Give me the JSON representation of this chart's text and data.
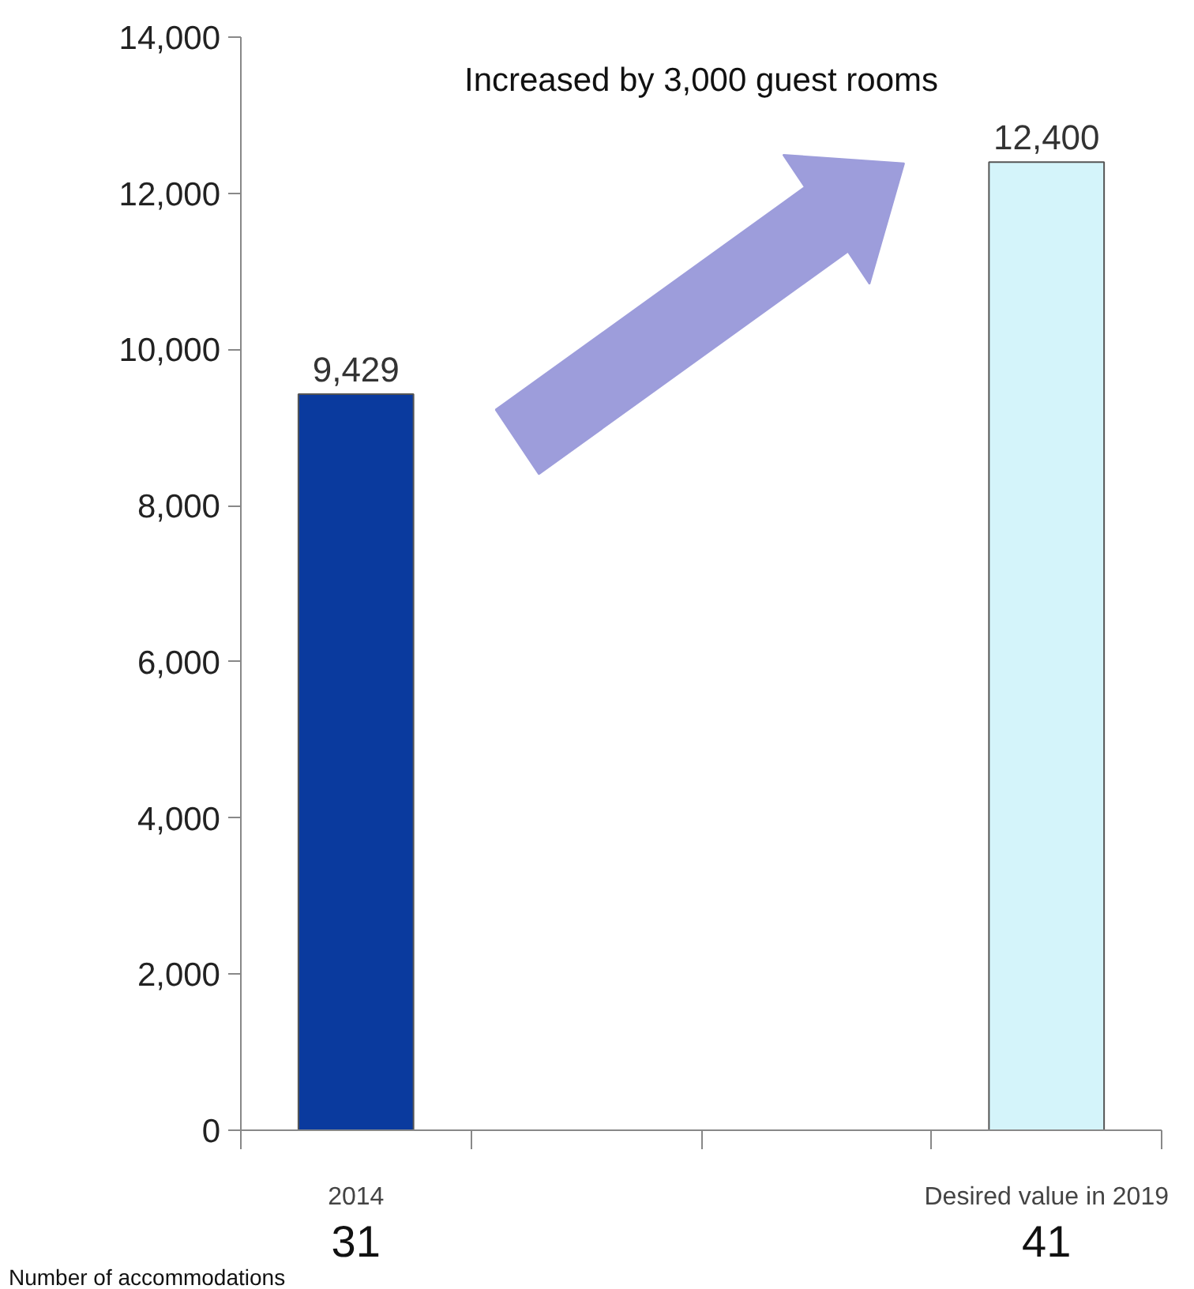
{
  "chart_data": {
    "type": "bar",
    "categories": [
      "2014",
      null,
      null,
      "Desired value in 2019"
    ],
    "values": [
      9429,
      null,
      null,
      12400
    ],
    "colors": [
      "#0a3a9e",
      null,
      null,
      "#d4f4fa"
    ],
    "ylim": [
      0,
      14000
    ],
    "yticks": [
      {
        "value": 0,
        "label": "0"
      },
      {
        "value": 2000,
        "label": "2,000"
      },
      {
        "value": 4000,
        "label": "4,000"
      },
      {
        "value": 6000,
        "label": "6,000"
      },
      {
        "value": 8000,
        "label": "8,000"
      },
      {
        "value": 10000,
        "label": "10,000"
      },
      {
        "value": 12000,
        "label": "12,000"
      },
      {
        "value": 14000,
        "label": "14,000"
      }
    ],
    "value_labels": [
      "9,429",
      null,
      null,
      "12,400"
    ],
    "grid": false,
    "annotations": [
      "Increased by 3,000 guest rooms",
      "Number of accommodations",
      "31",
      "41"
    ]
  }
}
